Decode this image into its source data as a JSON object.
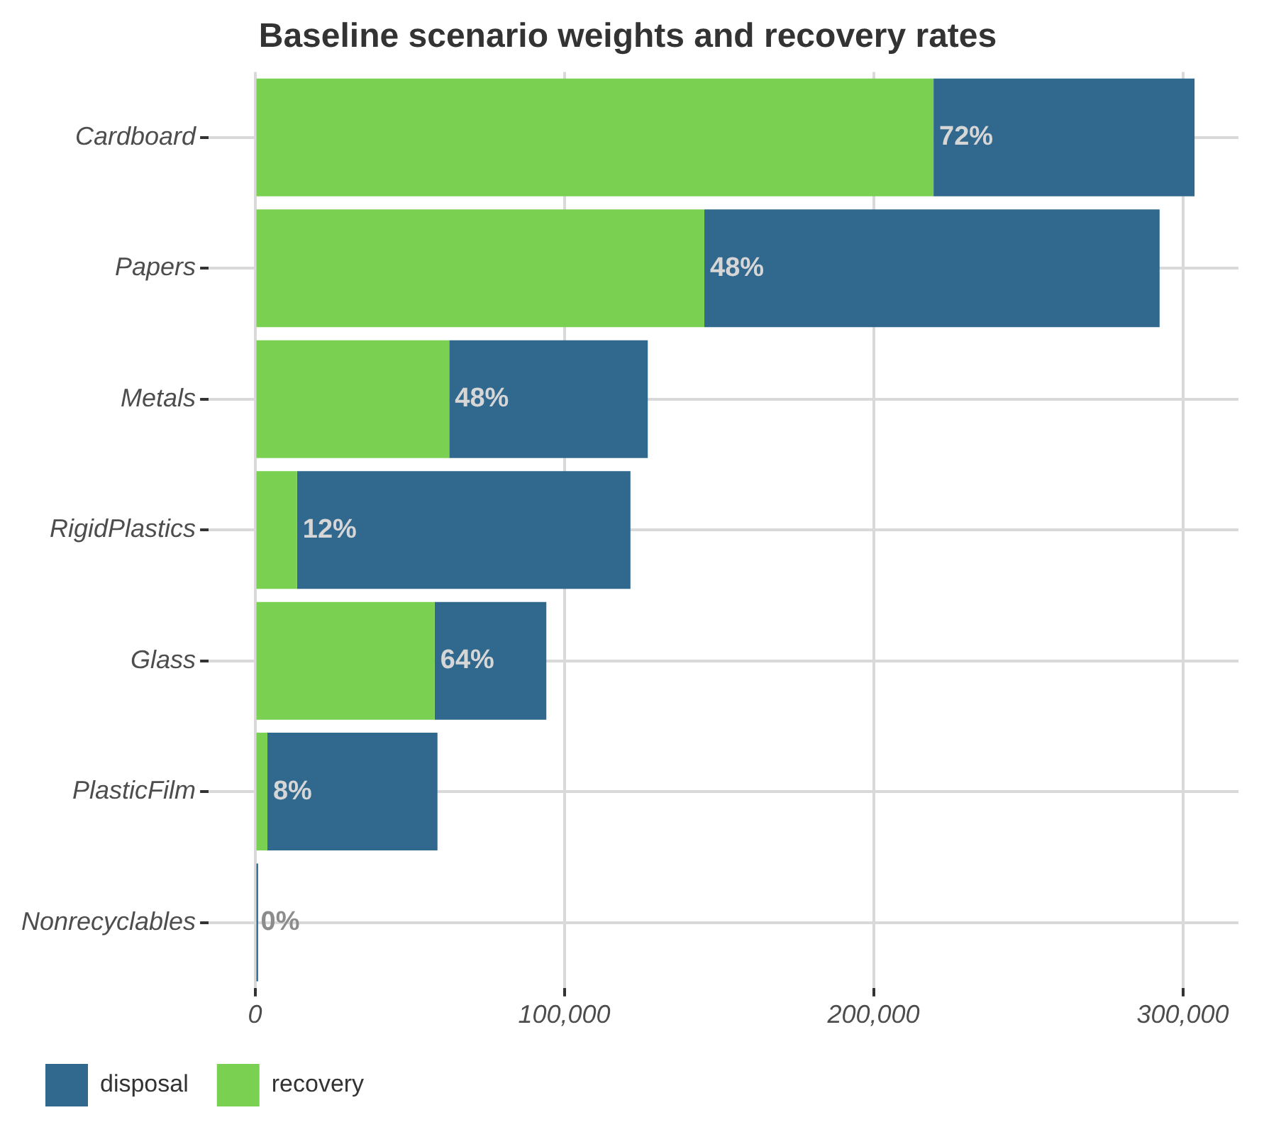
{
  "chart_data": {
    "type": "bar",
    "title": "Baseline scenario weights and recovery rates",
    "orientation": "horizontal",
    "stacked": true,
    "categories": [
      "Cardboard",
      "Papers",
      "Metals",
      "RigidPlastics",
      "Glass",
      "PlasticFilm",
      "Nonrecyclables"
    ],
    "series": [
      {
        "name": "recovery",
        "color": "#7ad151",
        "values": [
          219400,
          145300,
          62800,
          13600,
          58100,
          4000,
          0
        ]
      },
      {
        "name": "disposal",
        "color": "#31688e",
        "values": [
          84400,
          147200,
          64200,
          107800,
          36100,
          55000,
          1000
        ]
      }
    ],
    "annotations": [
      {
        "text": "72%",
        "x": 219400,
        "y": "Cardboard"
      },
      {
        "text": "48%",
        "x": 145300,
        "y": "Papers"
      },
      {
        "text": "48%",
        "x": 62800,
        "y": "Metals"
      },
      {
        "text": "12%",
        "x": 13600,
        "y": "RigidPlastics"
      },
      {
        "text": "64%",
        "x": 58100,
        "y": "Glass"
      },
      {
        "text": "8%",
        "x": 4000,
        "y": "PlasticFilm"
      },
      {
        "text": "0%",
        "x": 0,
        "y": "Nonrecyclables"
      }
    ],
    "xlim": [
      -15000,
      318000
    ],
    "xticks": [
      0,
      {
        "value": 100000,
        "label": "100,000"
      },
      {
        "value": 200000,
        "label": "200,000"
      },
      {
        "value": 300000,
        "label": "300,000"
      }
    ],
    "grid": true,
    "legend": "bottom"
  }
}
